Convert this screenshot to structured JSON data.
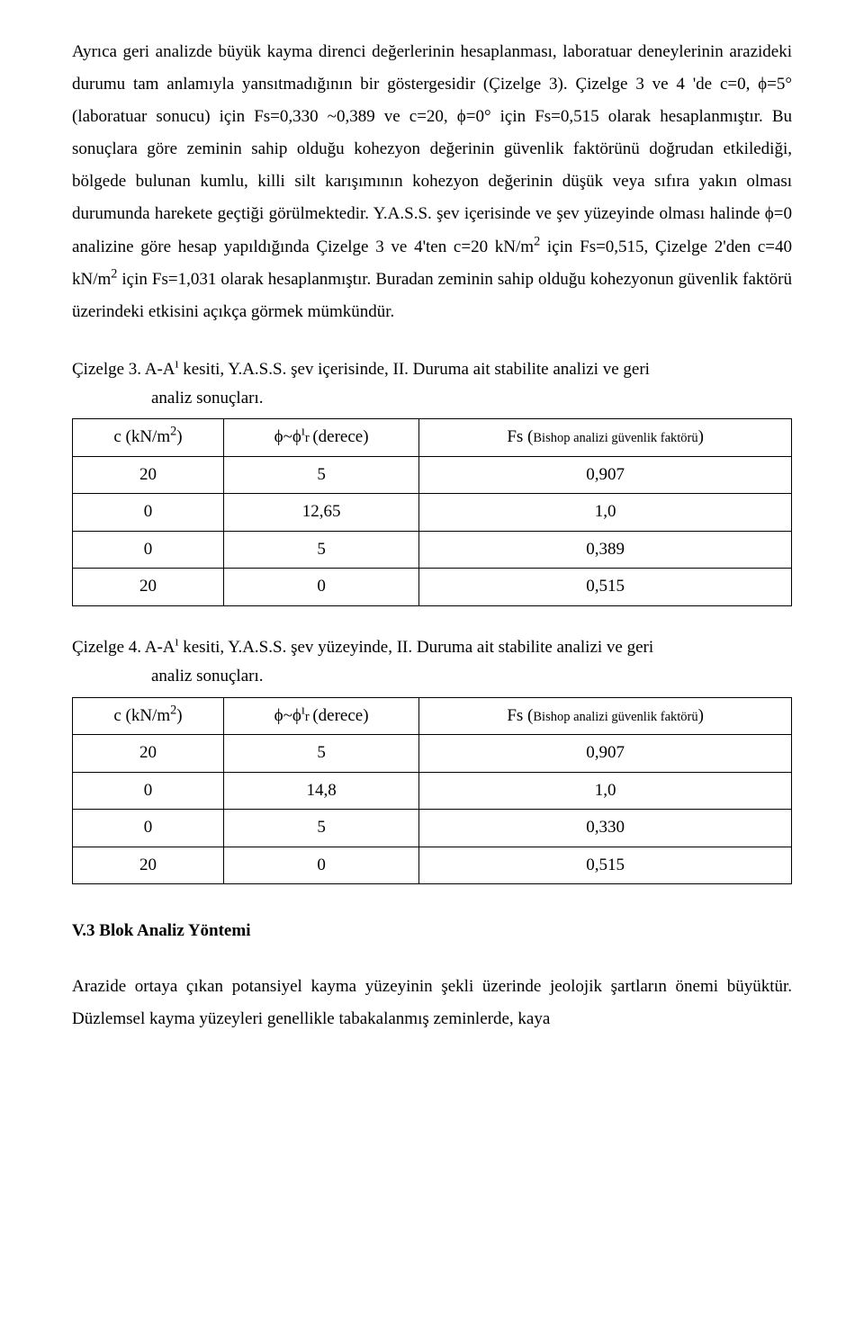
{
  "paragraphs": {
    "p1_a": "Ayrıca geri analizde büyük kayma direnci değerlerinin hesaplanması, laboratuar deneylerinin arazideki durumu tam anlamıyla yansıtmadığının bir göstergesidir (Çizelge 3). Çizelge 3 ve 4 'de c=0, ϕ=5° (laboratuar sonucu) için Fs=0,330 ~0,389 ve c=20, ϕ=0° için Fs=0,515 olarak hesaplanmıştır. Bu sonuçlara göre zeminin sahip olduğu kohezyon değerinin güvenlik faktörünü doğrudan etkilediği, bölgede bulunan kumlu, killi silt karışımının kohezyon değerinin düşük veya sıfıra yakın olması durumunda harekete geçtiği görülmektedir. Y.A.S.S. şev içerisinde ve şev yüzeyinde olması halinde ϕ=0 analizine göre hesap yapıldığında Çizelge 3 ve 4'ten c=20 kN/m",
    "p1_b": " için Fs=0,515, Çizelge 2'den c=40 kN/m",
    "p1_c": " için Fs=1,031 olarak hesaplanmıştır. Buradan zeminin sahip olduğu kohezyonun güvenlik faktörü üzerindeki etkisini açıkça görmek mümkündür.",
    "p2": "Arazide ortaya çıkan potansiyel kayma yüzeyinin şekli üzerinde jeolojik şartların önemi büyüktür. Düzlemsel kayma yüzeyleri genellikle tabakalanmış zeminlerde, kaya"
  },
  "captions": {
    "c3_a": "Çizelge 3.  A-A",
    "c3_b": " kesiti, Y.A.S.S. şev içerisinde, II. Duruma ait stabilite analizi ve geri",
    "c3_c": "analiz sonuçları.",
    "c4_a": "Çizelge 4.  A-A",
    "c4_b": " kesiti, Y.A.S.S. şev yüzeyinde, II. Duruma ait stabilite analizi ve geri",
    "c4_c": "analiz sonuçları."
  },
  "table_headers": {
    "h1_a": "c (kN/m",
    "h1_b": ")",
    "h2_a": "ϕ~ϕ",
    "h2_r": "r ",
    "h2_b": "(derece)",
    "h3_a": "Fs (",
    "h3_note": "Bishop analizi güvenlik faktörü",
    "h3_b": ")"
  },
  "table3": {
    "rows": [
      [
        "20",
        "5",
        "0,907"
      ],
      [
        "0",
        "12,65",
        "1,0"
      ],
      [
        "0",
        "5",
        "0,389"
      ],
      [
        "20",
        "0",
        "0,515"
      ]
    ]
  },
  "table4": {
    "rows": [
      [
        "20",
        "5",
        "0,907"
      ],
      [
        "0",
        "14,8",
        "1,0"
      ],
      [
        "0",
        "5",
        "0,330"
      ],
      [
        "20",
        "0",
        "0,515"
      ]
    ]
  },
  "section_heading": "V.3  Blok  Analiz  Yöntemi"
}
